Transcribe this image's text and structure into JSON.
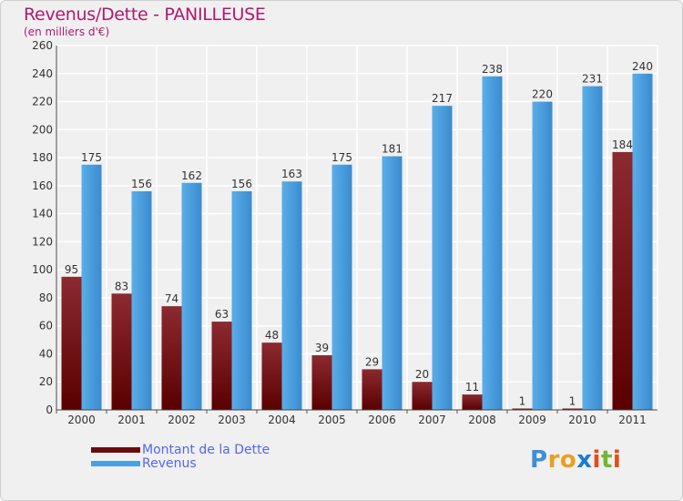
{
  "chart_data": {
    "type": "bar",
    "title": "Revenus/Dette - PANILLEUSE",
    "subtitle": "(en milliers d'€)",
    "categories": [
      "2000",
      "2001",
      "2002",
      "2003",
      "2004",
      "2005",
      "2006",
      "2007",
      "2008",
      "2009",
      "2010",
      "2011"
    ],
    "series": [
      {
        "name": "Montant de la Dette",
        "color": "#6b0c0c",
        "values": [
          95,
          83,
          74,
          63,
          48,
          39,
          29,
          20,
          11,
          1,
          1,
          184
        ]
      },
      {
        "name": "Revenus",
        "color": "#4a9fe0",
        "values": [
          175,
          156,
          162,
          156,
          163,
          175,
          181,
          217,
          238,
          220,
          231,
          240
        ]
      }
    ],
    "ylim": [
      0,
      260
    ],
    "yticks": [
      0,
      20,
      40,
      60,
      80,
      100,
      120,
      140,
      160,
      180,
      200,
      220,
      240,
      260
    ],
    "grid": true,
    "legend_placement": "bottom-left"
  },
  "logo": {
    "letters": [
      "P",
      "r",
      "o",
      "x",
      "i",
      "t",
      "i"
    ],
    "colors": [
      "#3f8fd6",
      "#e8a020",
      "#e8a020",
      "#1a7ad0",
      "#e24e1b",
      "#74b634",
      "#e24e1b"
    ]
  }
}
